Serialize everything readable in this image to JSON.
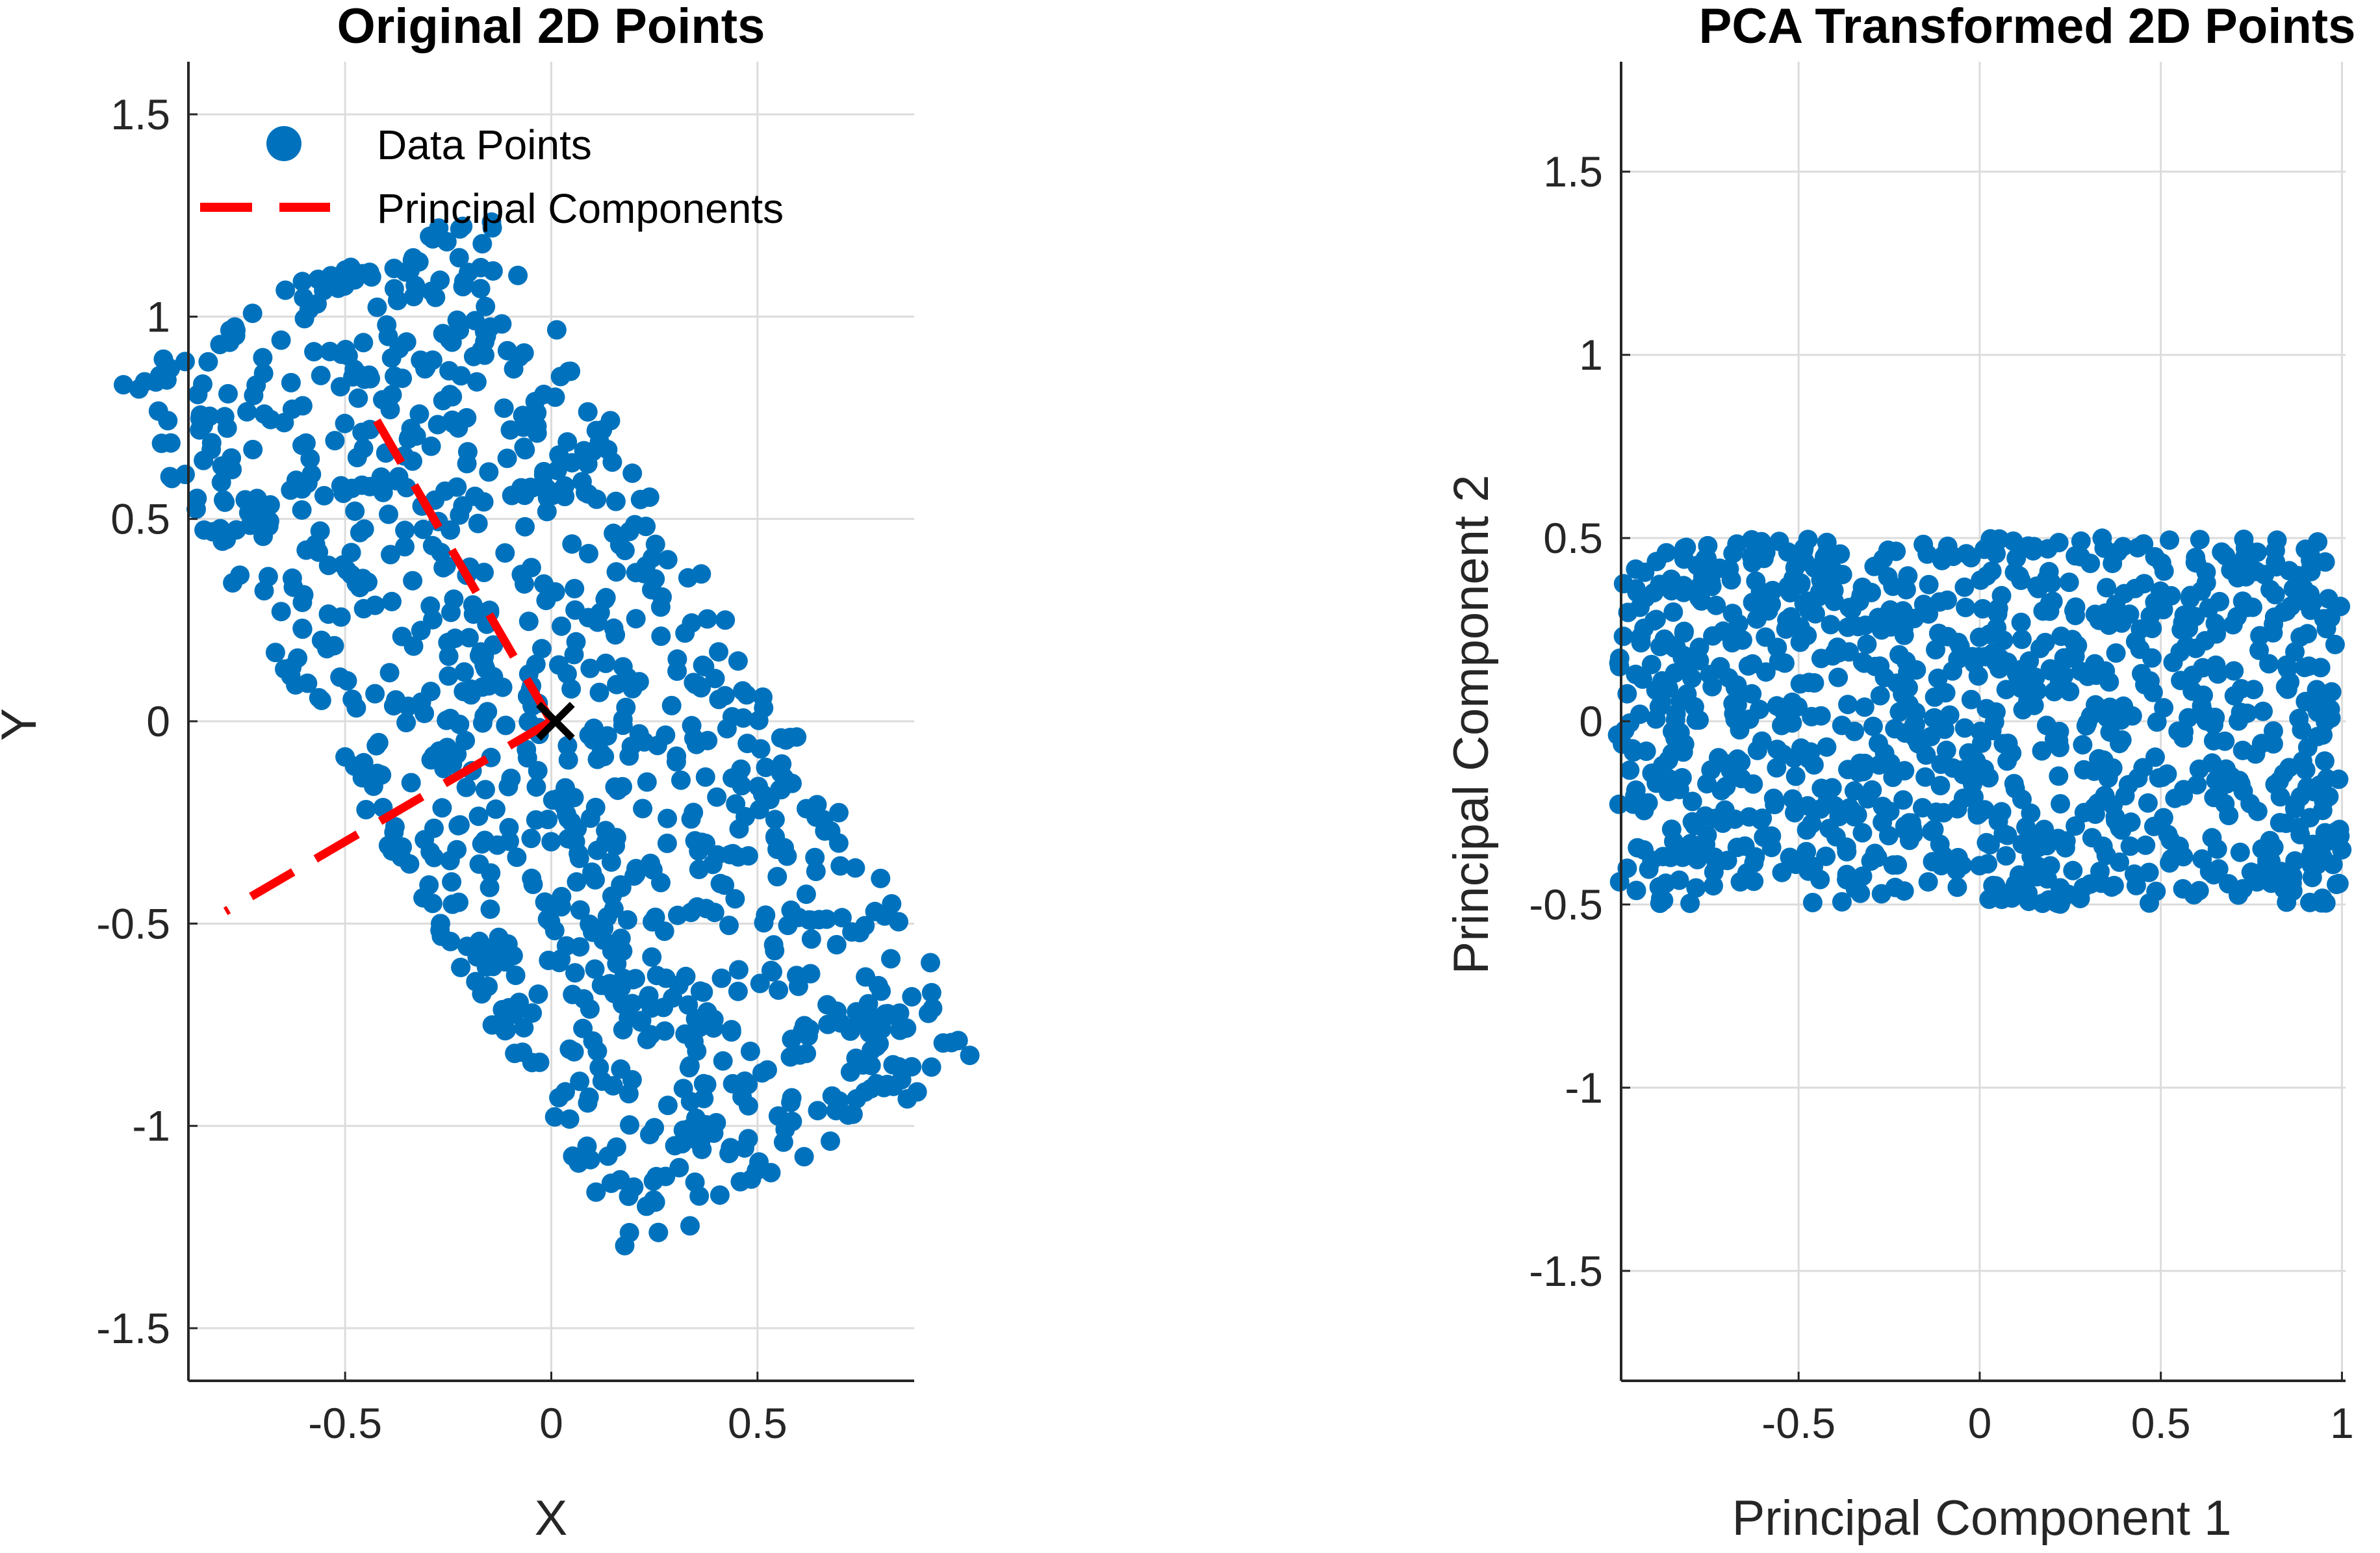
{
  "colors": {
    "points": "#0072BD",
    "principal_components": "#FF0000",
    "mean_marker": "#000000",
    "grid": "#dcdcdc",
    "axis": "#262626"
  },
  "chart_data": [
    {
      "type": "scatter",
      "title": "Original 2D Points",
      "xlabel": "X",
      "ylabel": "Y",
      "xlim": [
        -0.88,
        0.88
      ],
      "ylim": [
        -1.63,
        1.63
      ],
      "xticks": [
        -0.5,
        0,
        0.5
      ],
      "yticks": [
        -1.5,
        -1,
        -0.5,
        0,
        0.5,
        1,
        1.5
      ],
      "xtick_labels": [
        "-0.5",
        "0",
        "0.5"
      ],
      "ytick_labels": [
        "-1.5",
        "-1",
        "-0.5",
        "0",
        "0.5",
        "1",
        "1.5"
      ],
      "grid": true,
      "legend": {
        "location": "top-left",
        "entries": [
          "Data Points",
          "Principal Components"
        ]
      },
      "distribution": {
        "description": "uniform rectangle rotated -60 deg, centered at origin",
        "length": 2.5,
        "width": 1.0,
        "angle_deg": -60,
        "count": 1000
      },
      "principal_components": [
        {
          "x": [
            0.0,
            -0.45
          ],
          "y": [
            0.0,
            0.79
          ]
        },
        {
          "x": [
            0.0,
            -0.79
          ],
          "y": [
            0.0,
            -0.47
          ]
        }
      ],
      "mean": {
        "x": 0.01,
        "y": 0.0,
        "marker": "x"
      }
    },
    {
      "type": "scatter",
      "title": "PCA Transformed 2D Points",
      "xlabel": "Principal Component 1",
      "ylabel": "Principal Component 2",
      "xlim": [
        -0.99,
        1.01
      ],
      "ylim": [
        -1.8,
        1.8
      ],
      "xticks": [
        -0.5,
        0,
        0.5,
        1
      ],
      "yticks": [
        -1.5,
        -1,
        -0.5,
        0,
        0.5,
        1,
        1.5
      ],
      "xtick_labels": [
        "-0.5",
        "0",
        "0.5",
        "1"
      ],
      "ytick_labels": [
        "-1.5",
        "-1",
        "-0.5",
        "0",
        "0.5",
        "1",
        "1.5"
      ],
      "grid": true,
      "distribution": {
        "description": "uniform rectangle",
        "x_range": [
          -1.0,
          1.0
        ],
        "y_range": [
          -0.5,
          0.5
        ],
        "count": 1000
      }
    }
  ]
}
